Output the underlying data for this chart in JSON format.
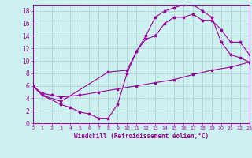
{
  "xlabel": "Windchill (Refroidissement éolien,°C)",
  "bg_color": "#cff0f0",
  "grid_color": "#aad4d4",
  "line_color": "#990099",
  "spine_color": "#9900aa",
  "xlim": [
    0,
    23
  ],
  "ylim": [
    0,
    19
  ],
  "xticks": [
    0,
    1,
    2,
    3,
    4,
    5,
    6,
    7,
    8,
    9,
    10,
    11,
    12,
    13,
    14,
    15,
    16,
    17,
    18,
    19,
    20,
    21,
    22,
    23
  ],
  "yticks": [
    0,
    2,
    4,
    6,
    8,
    10,
    12,
    14,
    16,
    18
  ],
  "curve1_x": [
    0,
    1,
    3,
    4,
    5,
    6,
    7,
    8,
    9,
    10,
    11,
    12,
    13,
    14,
    15,
    16,
    17,
    18,
    19,
    20,
    21,
    22,
    23
  ],
  "curve1_y": [
    6,
    4.5,
    3,
    2.5,
    1.8,
    1.5,
    0.8,
    0.8,
    3.0,
    8.0,
    11.5,
    14,
    17,
    18,
    18.5,
    19,
    19,
    18,
    17,
    13,
    11,
    10.5,
    9.8
  ],
  "curve2_x": [
    0,
    1,
    3,
    8,
    10,
    11,
    12,
    13,
    14,
    15,
    16,
    17,
    18,
    19,
    20,
    21,
    22,
    23
  ],
  "curve2_y": [
    6,
    4.5,
    3.5,
    8.2,
    8.5,
    11.5,
    13.5,
    14,
    16,
    17,
    17,
    17.5,
    16.5,
    16.5,
    15,
    13,
    13,
    11
  ],
  "curve3_x": [
    0,
    1,
    2,
    3,
    5,
    7,
    9,
    11,
    13,
    15,
    17,
    19,
    21,
    23
  ],
  "curve3_y": [
    6,
    4.8,
    4.5,
    4.2,
    4.5,
    5.0,
    5.5,
    6.0,
    6.5,
    7.0,
    7.8,
    8.5,
    9.0,
    9.8
  ]
}
